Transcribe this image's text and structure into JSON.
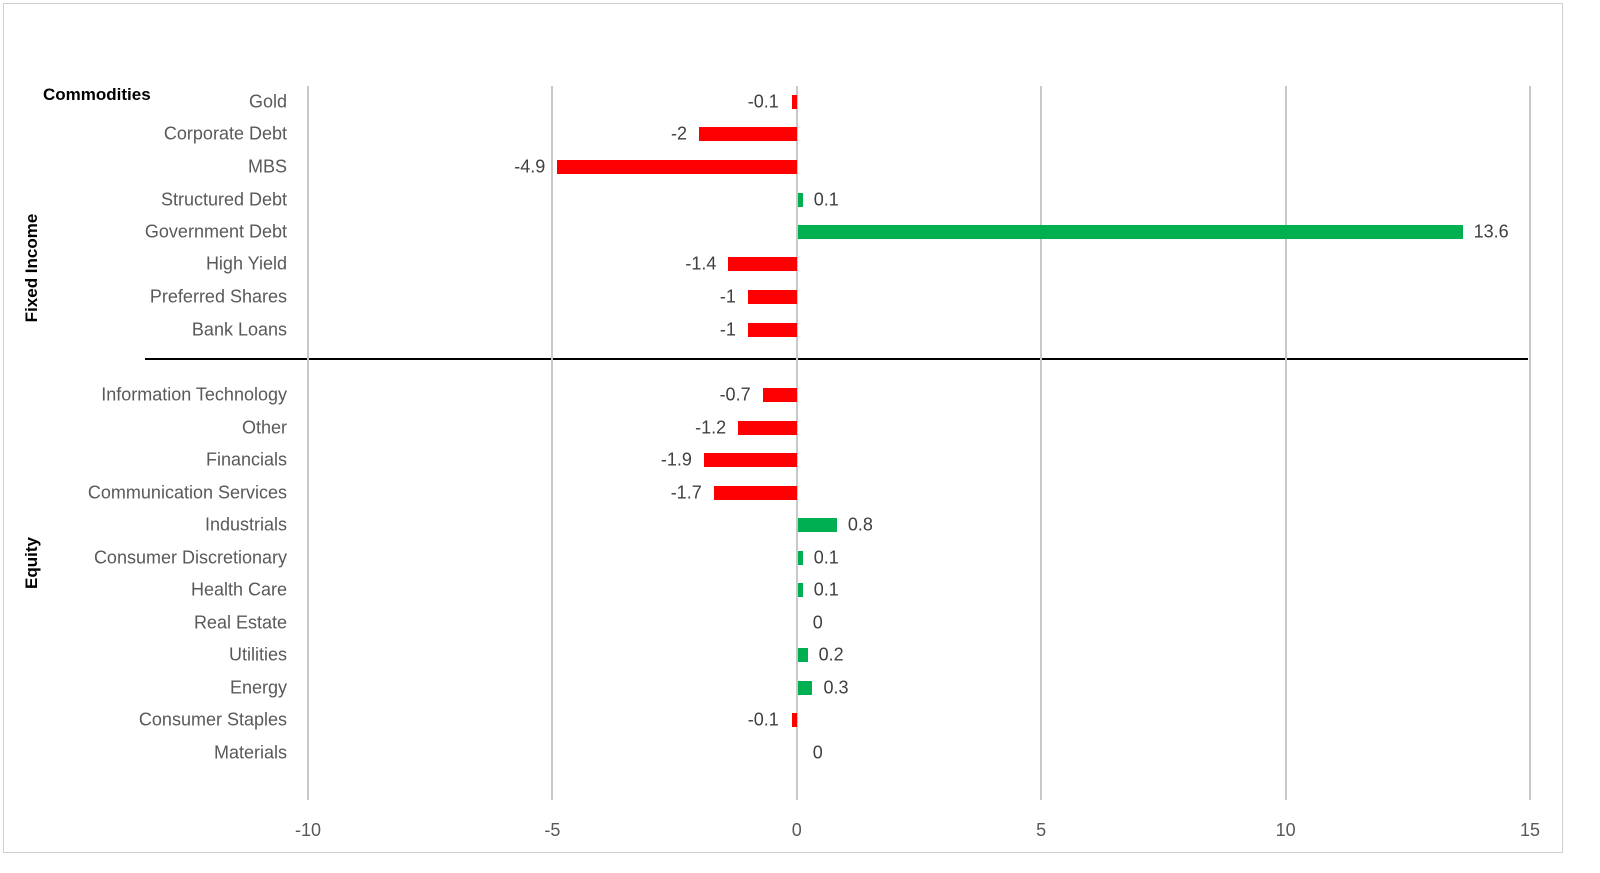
{
  "chart_data": {
    "type": "bar",
    "orientation": "horizontal",
    "title": "",
    "xlabel": "",
    "ylabel": "",
    "xlim": [
      -10,
      15
    ],
    "x_ticks": [
      "-10",
      "-5",
      "0",
      "5",
      "10",
      "15"
    ],
    "grid": "vertical",
    "legend": "none",
    "colors": {
      "positive": "#00b050",
      "negative": "#ff0000"
    },
    "groups": [
      {
        "name": "Commodities",
        "categories": [
          "Gold"
        ],
        "values": [
          -0.1
        ]
      },
      {
        "name": "Fixed Income",
        "categories": [
          "Corporate Debt",
          "MBS",
          "Structured Debt",
          "Government Debt",
          "High Yield",
          "Preferred Shares",
          "Bank Loans"
        ],
        "values": [
          -2,
          -4.9,
          0.1,
          13.6,
          -1.4,
          -1,
          -1
        ]
      },
      {
        "name": "Equity",
        "categories": [
          "Information Technology",
          "Other",
          "Financials",
          "Communication Services",
          "Industrials",
          "Consumer Discretionary",
          "Health Care",
          "Real Estate",
          "Utilities",
          "Energy",
          "Consumer Staples",
          "Materials"
        ],
        "values": [
          -0.7,
          -1.2,
          -1.9,
          -1.7,
          0.8,
          0.1,
          0.1,
          0,
          0.2,
          0.3,
          -0.1,
          0
        ]
      }
    ],
    "categories": [
      "Gold",
      "Corporate Debt",
      "MBS",
      "Structured Debt",
      "Government Debt",
      "High Yield",
      "Preferred Shares",
      "Bank Loans",
      "Information Technology",
      "Other",
      "Financials",
      "Communication Services",
      "Industrials",
      "Consumer Discretionary",
      "Health Care",
      "Real Estate",
      "Utilities",
      "Energy",
      "Consumer Staples",
      "Materials"
    ],
    "values": [
      -0.1,
      -2,
      -4.9,
      0.1,
      13.6,
      -1.4,
      -1,
      -1,
      -0.7,
      -1.2,
      -1.9,
      -1.7,
      0.8,
      0.1,
      0.1,
      0,
      0.2,
      0.3,
      -0.1,
      0
    ],
    "value_labels": [
      "-0.1",
      "-2",
      "-4.9",
      "0.1",
      "13.6",
      "-1.4",
      "-1",
      "-1",
      "-0.7",
      "-1.2",
      "-1.9",
      "-1.7",
      "0.8",
      "0.1",
      "0.1",
      "0",
      "0.2",
      "0.3",
      "-0.1",
      "0"
    ]
  },
  "group_labels": {
    "commodities": "Commodities",
    "fixed_income": "Fixed Income",
    "equity": "Equity"
  }
}
